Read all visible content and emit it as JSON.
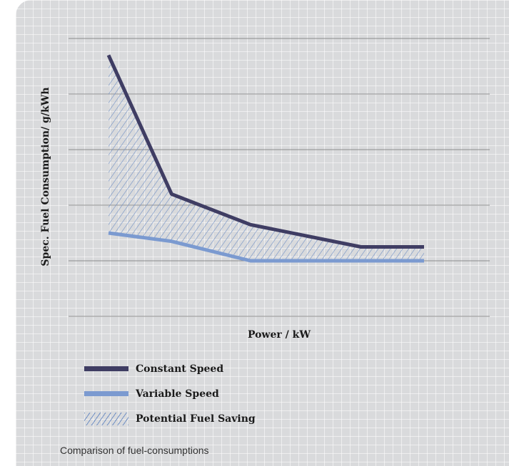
{
  "chart_data": {
    "type": "line",
    "xlabel": "Power / kW",
    "ylabel": "Spec. Fuel Consumption/ g/kWh",
    "series": [
      {
        "name": "Constant Speed",
        "color": "#3f3d63",
        "x": [
          0,
          0.2,
          0.45,
          0.8,
          1
        ],
        "values": [
          0.94,
          0.44,
          0.33,
          0.25,
          0.25
        ]
      },
      {
        "name": "Variable Speed",
        "color": "#7b9ad0",
        "x": [
          0,
          0.2,
          0.45,
          0.8,
          1
        ],
        "values": [
          0.3,
          0.27,
          0.2,
          0.2,
          0.2
        ]
      }
    ],
    "fill_between": {
      "name": "Potential Fuel Saving",
      "color": "#6f8fc4",
      "pattern": "diagonal-hatch"
    },
    "grid": "horizontal",
    "legend_placement": "bottom-left"
  },
  "legend": {
    "constant_speed": "Constant Speed",
    "variable_speed": "Variable Speed",
    "potential_saving": "Potential Fuel Saving"
  },
  "caption": "Comparison of fuel-consumptions"
}
